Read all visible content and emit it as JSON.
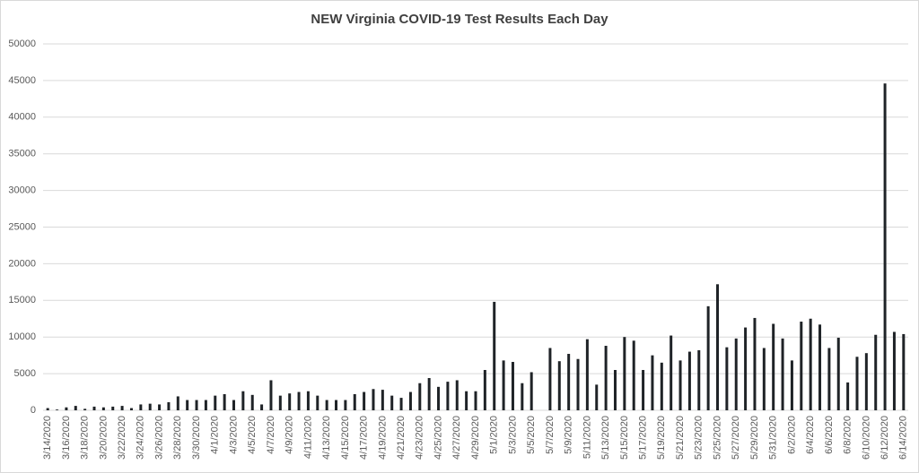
{
  "chart_data": {
    "type": "bar",
    "title": "NEW Virginia COVID-19 Test Results Each Day",
    "categories": [
      "3/14/2020",
      null,
      "3/16/2020",
      null,
      "3/18/2020",
      null,
      "3/20/2020",
      null,
      "3/22/2020",
      null,
      "3/24/2020",
      null,
      "3/26/2020",
      null,
      "3/28/2020",
      null,
      "3/30/2020",
      null,
      "4/1/2020",
      null,
      "4/3/2020",
      null,
      "4/5/2020",
      null,
      "4/7/2020",
      null,
      "4/9/2020",
      null,
      "4/11/2020",
      null,
      "4/13/2020",
      null,
      "4/15/2020",
      null,
      "4/17/2020",
      null,
      "4/19/2020",
      null,
      "4/21/2020",
      null,
      "4/23/2020",
      null,
      "4/25/2020",
      null,
      "4/27/2020",
      null,
      "4/29/2020",
      null,
      "5/1/2020",
      null,
      "5/3/2020",
      null,
      "5/5/2020",
      null,
      "5/7/2020",
      null,
      "5/9/2020",
      null,
      "5/11/2020",
      null,
      "5/13/2020",
      null,
      "5/15/2020",
      null,
      "5/17/2020",
      null,
      "5/19/2020",
      null,
      "5/21/2020",
      null,
      "5/23/2020",
      null,
      "5/25/2020",
      null,
      "5/27/2020",
      null,
      "5/29/2020",
      null,
      "5/31/2020",
      null,
      "6/2/2020",
      null,
      "6/4/2020",
      null,
      "6/6/2020",
      null,
      "6/8/2020",
      null,
      "6/10/2020",
      null,
      "6/12/2020",
      null,
      "6/14/2020"
    ],
    "values": [
      300,
      100,
      400,
      600,
      200,
      500,
      400,
      500,
      600,
      300,
      800,
      900,
      800,
      1100,
      1900,
      1400,
      1400,
      1400,
      2000,
      2200,
      1400,
      2600,
      2100,
      800,
      4100,
      2000,
      2300,
      2500,
      2600,
      2000,
      1400,
      1400,
      1400,
      2200,
      2500,
      2900,
      2800,
      2000,
      1700,
      2500,
      3700,
      4400,
      3200,
      3900,
      4100,
      2600,
      2600,
      5500,
      14800,
      6800,
      6600,
      3700,
      5200,
      0,
      8500,
      6700,
      7700,
      7000,
      9700,
      3500,
      8800,
      5500,
      10000,
      9500,
      5500,
      7500,
      6500,
      10200,
      6800,
      8000,
      8200,
      14200,
      17200,
      8600,
      9800,
      11300,
      12600,
      8500,
      11800,
      9800,
      6800,
      12100,
      12500,
      11700,
      8500,
      9900,
      3800,
      7300,
      7800,
      10300,
      44600,
      10700,
      10400
    ],
    "color": "#1f2327",
    "ylim": [
      0,
      50000
    ],
    "yticks": [
      0,
      5000,
      10000,
      15000,
      20000,
      25000,
      30000,
      35000,
      40000,
      45000,
      50000
    ],
    "grid": true
  }
}
